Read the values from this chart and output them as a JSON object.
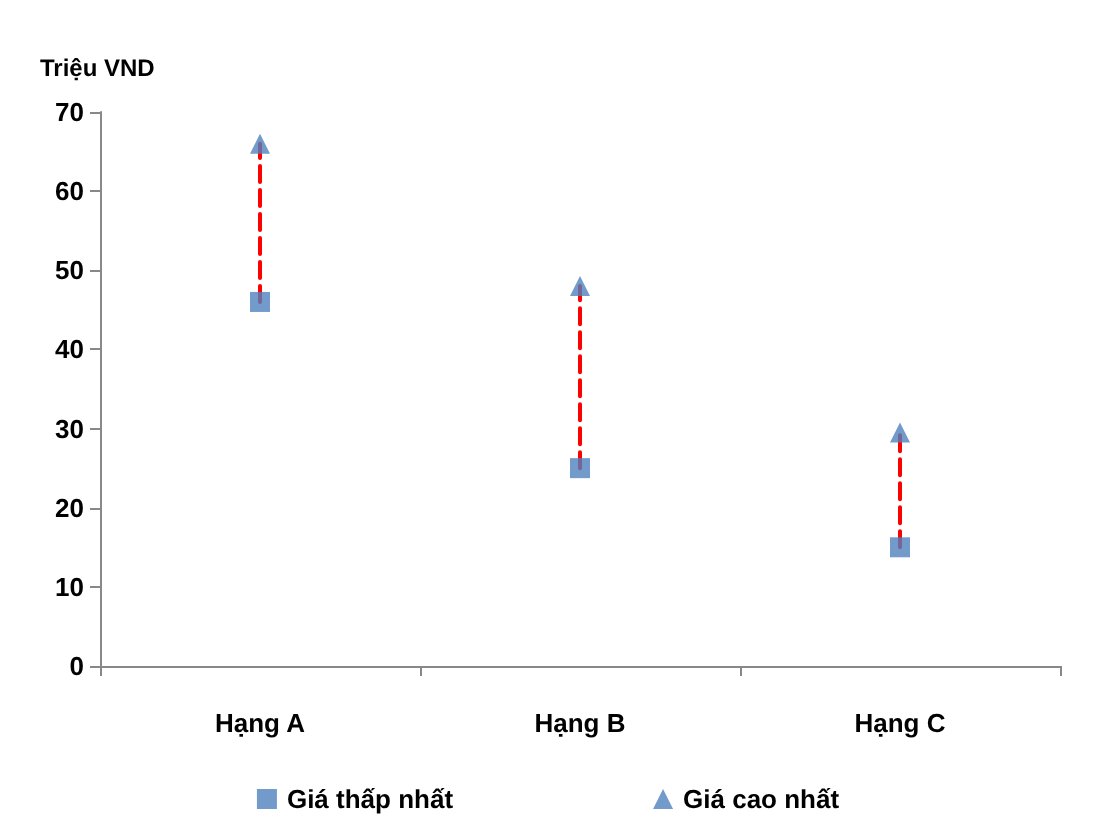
{
  "chart_data": {
    "type": "scatter",
    "ylabel": "Triệu VND",
    "categories": [
      "Hạng A",
      "Hạng B",
      "Hạng C"
    ],
    "series": [
      {
        "type": "line",
        "x": [
          "Hạng A",
          "Hạng A"
        ],
        "values": [
          46,
          66
        ],
        "color": "#ff0000",
        "line_style": "dashed",
        "marker": "none"
      },
      {
        "type": "line",
        "x": [
          "Hạng B",
          "Hạng B"
        ],
        "values": [
          25,
          48
        ],
        "color": "#ff0000",
        "line_style": "dashed",
        "marker": "none"
      },
      {
        "type": "line",
        "x": [
          "Hạng C",
          "Hạng C"
        ],
        "values": [
          15,
          29.5
        ],
        "color": "#ff0000",
        "line_style": "dashed",
        "marker": "none"
      },
      {
        "name": "Giá thấp nhất",
        "color": "#4f81bd",
        "values": [
          46,
          25,
          15
        ],
        "marker": "square"
      },
      {
        "name": "Giá cao nhất",
        "color": "#4f81bd",
        "values": [
          66,
          48,
          29.5
        ],
        "marker": "triangle"
      }
    ],
    "ylim": [
      0,
      70
    ],
    "yticks": [
      0,
      10,
      20,
      30,
      40,
      50,
      60,
      70
    ],
    "grid": false,
    "legend": "bottom"
  }
}
